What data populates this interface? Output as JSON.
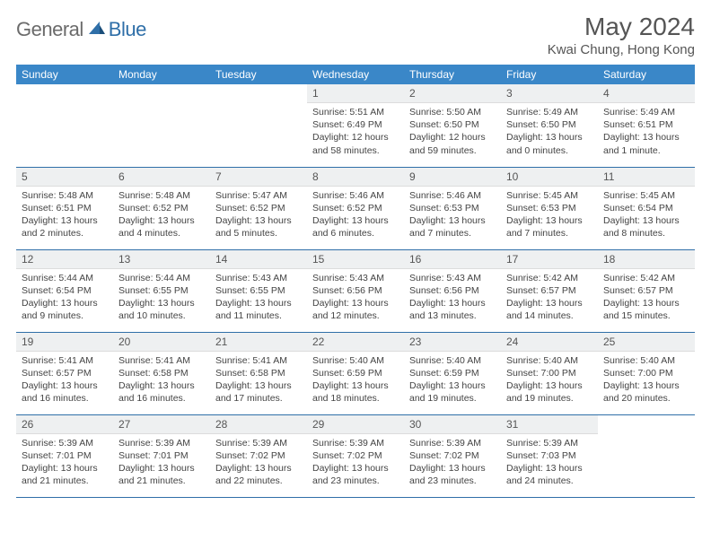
{
  "brand": {
    "part1": "General",
    "part2": "Blue"
  },
  "title": "May 2024",
  "location": "Kwai Chung, Hong Kong",
  "colors": {
    "header_bg": "#3a87c8",
    "border": "#2f6fa8",
    "daynum_bg": "#eef0f1",
    "text": "#444444",
    "title_text": "#555555"
  },
  "weekdays": [
    "Sunday",
    "Monday",
    "Tuesday",
    "Wednesday",
    "Thursday",
    "Friday",
    "Saturday"
  ],
  "weeks": [
    [
      {
        "n": "",
        "sr": "",
        "ss": "",
        "dl": ""
      },
      {
        "n": "",
        "sr": "",
        "ss": "",
        "dl": ""
      },
      {
        "n": "",
        "sr": "",
        "ss": "",
        "dl": ""
      },
      {
        "n": "1",
        "sr": "Sunrise: 5:51 AM",
        "ss": "Sunset: 6:49 PM",
        "dl": "Daylight: 12 hours and 58 minutes."
      },
      {
        "n": "2",
        "sr": "Sunrise: 5:50 AM",
        "ss": "Sunset: 6:50 PM",
        "dl": "Daylight: 12 hours and 59 minutes."
      },
      {
        "n": "3",
        "sr": "Sunrise: 5:49 AM",
        "ss": "Sunset: 6:50 PM",
        "dl": "Daylight: 13 hours and 0 minutes."
      },
      {
        "n": "4",
        "sr": "Sunrise: 5:49 AM",
        "ss": "Sunset: 6:51 PM",
        "dl": "Daylight: 13 hours and 1 minute."
      }
    ],
    [
      {
        "n": "5",
        "sr": "Sunrise: 5:48 AM",
        "ss": "Sunset: 6:51 PM",
        "dl": "Daylight: 13 hours and 2 minutes."
      },
      {
        "n": "6",
        "sr": "Sunrise: 5:48 AM",
        "ss": "Sunset: 6:52 PM",
        "dl": "Daylight: 13 hours and 4 minutes."
      },
      {
        "n": "7",
        "sr": "Sunrise: 5:47 AM",
        "ss": "Sunset: 6:52 PM",
        "dl": "Daylight: 13 hours and 5 minutes."
      },
      {
        "n": "8",
        "sr": "Sunrise: 5:46 AM",
        "ss": "Sunset: 6:52 PM",
        "dl": "Daylight: 13 hours and 6 minutes."
      },
      {
        "n": "9",
        "sr": "Sunrise: 5:46 AM",
        "ss": "Sunset: 6:53 PM",
        "dl": "Daylight: 13 hours and 7 minutes."
      },
      {
        "n": "10",
        "sr": "Sunrise: 5:45 AM",
        "ss": "Sunset: 6:53 PM",
        "dl": "Daylight: 13 hours and 7 minutes."
      },
      {
        "n": "11",
        "sr": "Sunrise: 5:45 AM",
        "ss": "Sunset: 6:54 PM",
        "dl": "Daylight: 13 hours and 8 minutes."
      }
    ],
    [
      {
        "n": "12",
        "sr": "Sunrise: 5:44 AM",
        "ss": "Sunset: 6:54 PM",
        "dl": "Daylight: 13 hours and 9 minutes."
      },
      {
        "n": "13",
        "sr": "Sunrise: 5:44 AM",
        "ss": "Sunset: 6:55 PM",
        "dl": "Daylight: 13 hours and 10 minutes."
      },
      {
        "n": "14",
        "sr": "Sunrise: 5:43 AM",
        "ss": "Sunset: 6:55 PM",
        "dl": "Daylight: 13 hours and 11 minutes."
      },
      {
        "n": "15",
        "sr": "Sunrise: 5:43 AM",
        "ss": "Sunset: 6:56 PM",
        "dl": "Daylight: 13 hours and 12 minutes."
      },
      {
        "n": "16",
        "sr": "Sunrise: 5:43 AM",
        "ss": "Sunset: 6:56 PM",
        "dl": "Daylight: 13 hours and 13 minutes."
      },
      {
        "n": "17",
        "sr": "Sunrise: 5:42 AM",
        "ss": "Sunset: 6:57 PM",
        "dl": "Daylight: 13 hours and 14 minutes."
      },
      {
        "n": "18",
        "sr": "Sunrise: 5:42 AM",
        "ss": "Sunset: 6:57 PM",
        "dl": "Daylight: 13 hours and 15 minutes."
      }
    ],
    [
      {
        "n": "19",
        "sr": "Sunrise: 5:41 AM",
        "ss": "Sunset: 6:57 PM",
        "dl": "Daylight: 13 hours and 16 minutes."
      },
      {
        "n": "20",
        "sr": "Sunrise: 5:41 AM",
        "ss": "Sunset: 6:58 PM",
        "dl": "Daylight: 13 hours and 16 minutes."
      },
      {
        "n": "21",
        "sr": "Sunrise: 5:41 AM",
        "ss": "Sunset: 6:58 PM",
        "dl": "Daylight: 13 hours and 17 minutes."
      },
      {
        "n": "22",
        "sr": "Sunrise: 5:40 AM",
        "ss": "Sunset: 6:59 PM",
        "dl": "Daylight: 13 hours and 18 minutes."
      },
      {
        "n": "23",
        "sr": "Sunrise: 5:40 AM",
        "ss": "Sunset: 6:59 PM",
        "dl": "Daylight: 13 hours and 19 minutes."
      },
      {
        "n": "24",
        "sr": "Sunrise: 5:40 AM",
        "ss": "Sunset: 7:00 PM",
        "dl": "Daylight: 13 hours and 19 minutes."
      },
      {
        "n": "25",
        "sr": "Sunrise: 5:40 AM",
        "ss": "Sunset: 7:00 PM",
        "dl": "Daylight: 13 hours and 20 minutes."
      }
    ],
    [
      {
        "n": "26",
        "sr": "Sunrise: 5:39 AM",
        "ss": "Sunset: 7:01 PM",
        "dl": "Daylight: 13 hours and 21 minutes."
      },
      {
        "n": "27",
        "sr": "Sunrise: 5:39 AM",
        "ss": "Sunset: 7:01 PM",
        "dl": "Daylight: 13 hours and 21 minutes."
      },
      {
        "n": "28",
        "sr": "Sunrise: 5:39 AM",
        "ss": "Sunset: 7:02 PM",
        "dl": "Daylight: 13 hours and 22 minutes."
      },
      {
        "n": "29",
        "sr": "Sunrise: 5:39 AM",
        "ss": "Sunset: 7:02 PM",
        "dl": "Daylight: 13 hours and 23 minutes."
      },
      {
        "n": "30",
        "sr": "Sunrise: 5:39 AM",
        "ss": "Sunset: 7:02 PM",
        "dl": "Daylight: 13 hours and 23 minutes."
      },
      {
        "n": "31",
        "sr": "Sunrise: 5:39 AM",
        "ss": "Sunset: 7:03 PM",
        "dl": "Daylight: 13 hours and 24 minutes."
      },
      {
        "n": "",
        "sr": "",
        "ss": "",
        "dl": ""
      }
    ]
  ]
}
